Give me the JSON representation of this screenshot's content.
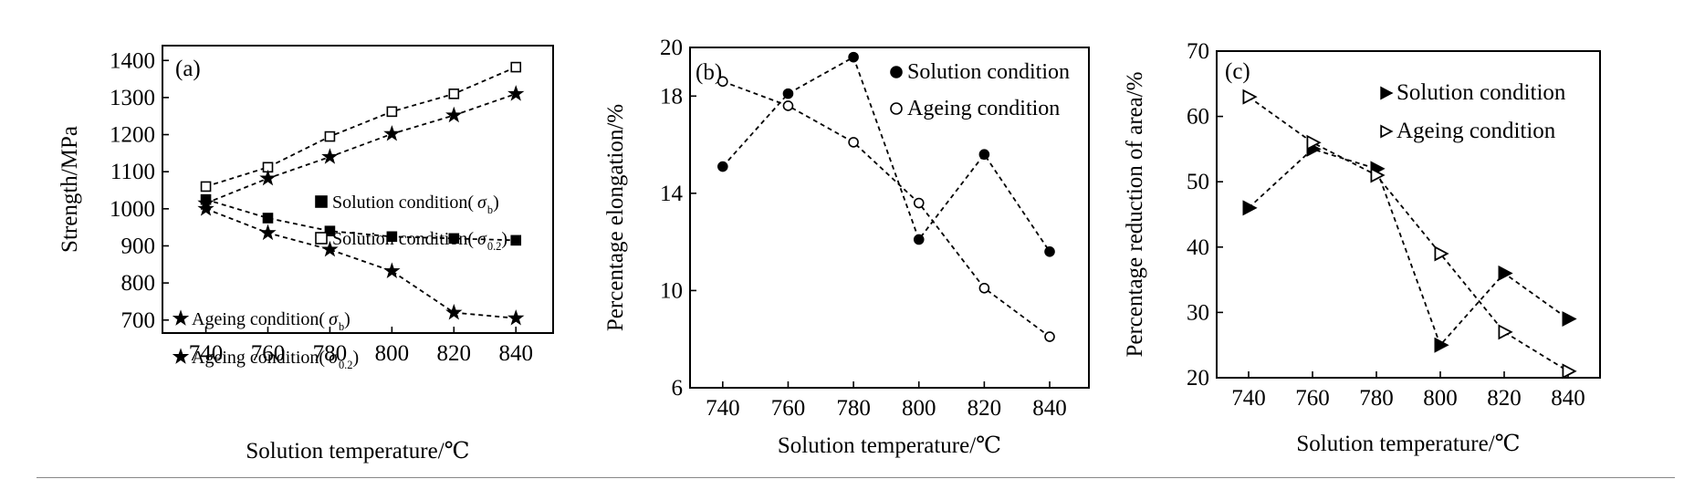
{
  "chart_data": [
    {
      "type": "line",
      "panel_label": "(a)",
      "xlabel": "Solution temperature/℃",
      "ylabel": "Strength/MPa",
      "xlim": [
        726,
        852
      ],
      "ylim": [
        665,
        1440
      ],
      "xticks": [
        740,
        760,
        780,
        800,
        820,
        840
      ],
      "yticks": [
        700,
        800,
        900,
        1000,
        1100,
        1200,
        1300,
        1400
      ],
      "legend_position": "inside center and lower-left",
      "series": [
        {
          "name": "Solution condition(σb)",
          "legend_text": "Solution condition(",
          "sigma": "σ",
          "sub": "b",
          "close": ")",
          "marker": "square-filled",
          "x": [
            740,
            760,
            780,
            800,
            820,
            840
          ],
          "values": [
            1025,
            975,
            940,
            925,
            920,
            915
          ]
        },
        {
          "name": "Solution condition(σ0.2)",
          "legend_text": "Solution condition(",
          "sigma": "σ",
          "sub": "0.2",
          "close": ")",
          "marker": "square-open",
          "x": [
            740,
            760,
            780,
            800,
            820,
            840
          ],
          "values": [
            1060,
            1112,
            1195,
            1262,
            1310,
            1382
          ]
        },
        {
          "name": "Ageing condition(σb)",
          "legend_text": "Ageing condition(",
          "sigma": "σ",
          "sub": "b",
          "close": ")",
          "marker": "star",
          "x": [
            740,
            760,
            780,
            800,
            820,
            840
          ],
          "values": [
            1015,
            1082,
            1140,
            1202,
            1252,
            1310
          ]
        },
        {
          "name": "Ageing condition(σ0.2)",
          "legend_text": "Ageing condition(",
          "sigma": "σ",
          "sub": "0.2",
          "close": ")",
          "marker": "star",
          "x": [
            740,
            760,
            780,
            800,
            820,
            840
          ],
          "values": [
            1000,
            935,
            890,
            832,
            720,
            705
          ]
        }
      ]
    },
    {
      "type": "line",
      "panel_label": "(b)",
      "xlabel": "Solution temperature/℃",
      "ylabel": "Percentage elongation/%",
      "xlim": [
        730,
        852
      ],
      "ylim": [
        6,
        20
      ],
      "xticks": [
        740,
        760,
        780,
        800,
        820,
        840
      ],
      "yticks": [
        6,
        10,
        14,
        18,
        20
      ],
      "legend_position": "top-right",
      "series": [
        {
          "name": "Solution condition",
          "legend_text": "Solution condition",
          "marker": "circle-filled",
          "x": [
            740,
            760,
            780,
            800,
            820,
            840
          ],
          "values": [
            15.1,
            18.1,
            19.6,
            12.1,
            15.6,
            11.6
          ]
        },
        {
          "name": "Ageing condition",
          "legend_text": "Ageing condition",
          "marker": "circle-open",
          "x": [
            740,
            760,
            780,
            800,
            820,
            840
          ],
          "values": [
            18.6,
            17.6,
            16.1,
            13.6,
            10.1,
            8.1
          ]
        }
      ]
    },
    {
      "type": "line",
      "panel_label": "(c)",
      "xlabel": "Solution temperature/℃",
      "ylabel": "Percentage reduction of area/%",
      "xlim": [
        730,
        850
      ],
      "ylim": [
        20,
        70
      ],
      "xticks": [
        740,
        760,
        780,
        800,
        820,
        840
      ],
      "yticks": [
        20,
        30,
        40,
        50,
        60,
        70
      ],
      "legend_position": "top-right",
      "series": [
        {
          "name": "Solution condition",
          "legend_text": "Solution condition",
          "marker": "triangle-right-filled",
          "x": [
            740,
            760,
            780,
            800,
            820,
            840
          ],
          "values": [
            46,
            55,
            52,
            25,
            36,
            29
          ]
        },
        {
          "name": "Ageing condition",
          "legend_text": "Ageing condition",
          "marker": "triangle-right-open",
          "x": [
            740,
            760,
            780,
            800,
            820,
            840
          ],
          "values": [
            63,
            56,
            51,
            39,
            27,
            21
          ]
        }
      ]
    }
  ]
}
